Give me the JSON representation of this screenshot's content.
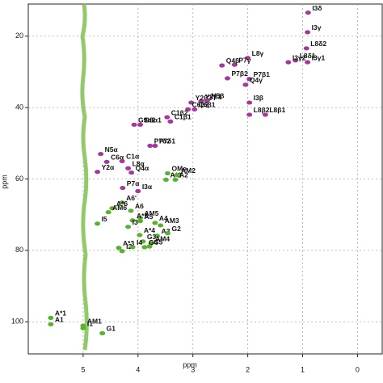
{
  "chart_data": {
    "type": "scatter",
    "x_label": "ppm",
    "y_label": "ppm",
    "xlim": [
      6,
      -0.45
    ],
    "ylim": [
      11,
      109
    ],
    "xticks": [
      5,
      4,
      3,
      2,
      1,
      0
    ],
    "yticks": [
      20,
      40,
      60,
      80,
      100
    ],
    "grid": true,
    "series": [
      {
        "color": "#a8379c",
        "labels": [
          "I3δ",
          "I3γ",
          "L8δ2",
          "L8δ1",
          "I3γ2",
          "I3γ1",
          "L8γ",
          "P7γ",
          "Q4β",
          "P7β2",
          "P7β1",
          "Q4γ",
          "I3β",
          "L8β2",
          "L8β1",
          "Y2β1",
          "Y2β2",
          "N5β",
          "C6β2",
          "C6β1",
          "C1β2",
          "C1β1",
          "G9α2",
          "G9α1",
          "P7δ2",
          "P7δ1",
          "N5α",
          "C6α",
          "C1α",
          "L8α",
          "Y2α",
          "Q4α",
          "P7α",
          "I3α"
        ],
        "x": [
          0.9,
          0.91,
          0.93,
          1.13,
          1.26,
          0.91,
          2.0,
          2.24,
          2.47,
          2.37,
          1.97,
          2.04,
          1.97,
          1.97,
          1.68,
          2.85,
          3.03,
          2.74,
          3.09,
          2.97,
          3.47,
          3.41,
          4.07,
          3.96,
          3.78,
          3.69,
          4.68,
          4.57,
          4.29,
          4.18,
          4.74,
          4.12,
          4.28,
          4.0
        ],
        "y": [
          13.4,
          18.9,
          23.4,
          26.8,
          27.3,
          27.3,
          26.1,
          28,
          28.2,
          31.8,
          32,
          33.6,
          38.6,
          42,
          42,
          38.2,
          38.6,
          38,
          40.5,
          40.5,
          42.7,
          43.9,
          44.8,
          44.8,
          50.7,
          50.7,
          53,
          55.2,
          55,
          57,
          58,
          58.2,
          62.5,
          63.4
        ]
      },
      {
        "color": "#5ab030",
        "labels": [
          "OMe",
          "A*2",
          "AM2",
          "A2",
          "A6'",
          "A*6",
          "A6",
          "AM6",
          "AM5",
          "A*5",
          "A5",
          "A4",
          "AM3",
          "I5",
          "I3",
          "A*4",
          "A3",
          "G2",
          "A*3",
          "G3",
          "AM4",
          "I2",
          "I4",
          "G4",
          "G5",
          "A*1",
          "A1",
          "AM1",
          "I1",
          "G1"
        ],
        "x": [
          3.46,
          3.49,
          3.29,
          3.32,
          4.29,
          4.47,
          4.13,
          4.54,
          3.96,
          4.1,
          3.96,
          3.69,
          3.59,
          4.74,
          4.18,
          3.97,
          3.65,
          3.46,
          4.35,
          3.91,
          3.76,
          4.29,
          4.1,
          3.88,
          3.79,
          5.59,
          5.59,
          5.0,
          5.0,
          4.65
        ],
        "y": [
          58.4,
          60.2,
          58.9,
          60.2,
          66.6,
          68.2,
          68.9,
          69.3,
          70.9,
          71.6,
          71.8,
          72.3,
          73,
          72.5,
          73.4,
          75.7,
          75.9,
          75.2,
          79.3,
          77.5,
          78,
          80.2,
          79.1,
          79.1,
          78.9,
          98.9,
          100.7,
          101.1,
          101.8,
          103.2
        ]
      }
    ]
  }
}
